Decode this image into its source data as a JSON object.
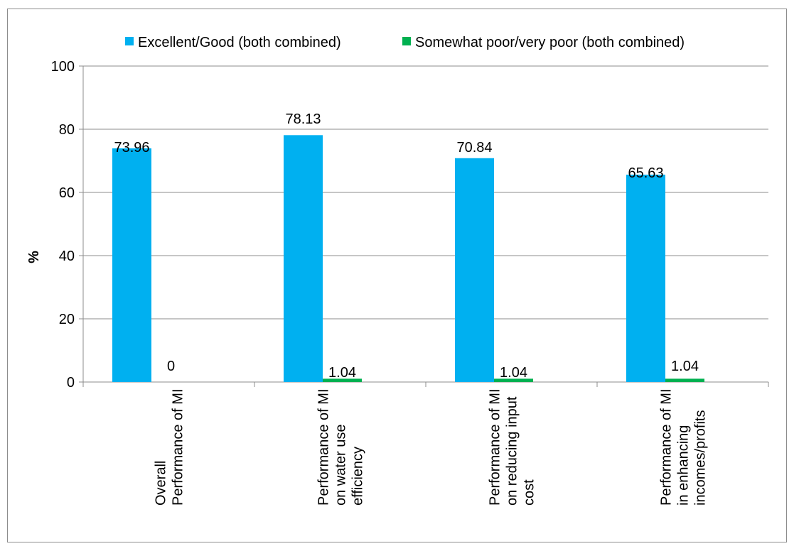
{
  "chart_data": {
    "type": "bar",
    "title": "",
    "xlabel": "",
    "ylabel": "%",
    "ylim": [
      0,
      100
    ],
    "yticks": [
      0,
      20,
      40,
      60,
      80,
      100
    ],
    "grid": true,
    "legend_position": "top",
    "categories": [
      [
        "Overall",
        "Performance of MI"
      ],
      [
        "Performance of MI",
        "on water use",
        "efficiency"
      ],
      [
        "Performance of MI",
        "on reducing input",
        "cost"
      ],
      [
        "Performance of MI",
        "in enhancing",
        "incomes/profits"
      ]
    ],
    "series": [
      {
        "name": "Excellent/Good (both combined)",
        "color": "#00b0f0",
        "values": [
          73.96,
          78.13,
          70.84,
          65.63
        ],
        "labels": [
          "73.96",
          "78.13",
          "70.84",
          "65.63"
        ]
      },
      {
        "name": "Somewhat poor/very poor (both combined)",
        "color": "#00b050",
        "values": [
          0,
          1.04,
          1.04,
          1.04
        ],
        "labels": [
          "0",
          "1.04",
          "1.04",
          "1.04"
        ]
      }
    ]
  }
}
